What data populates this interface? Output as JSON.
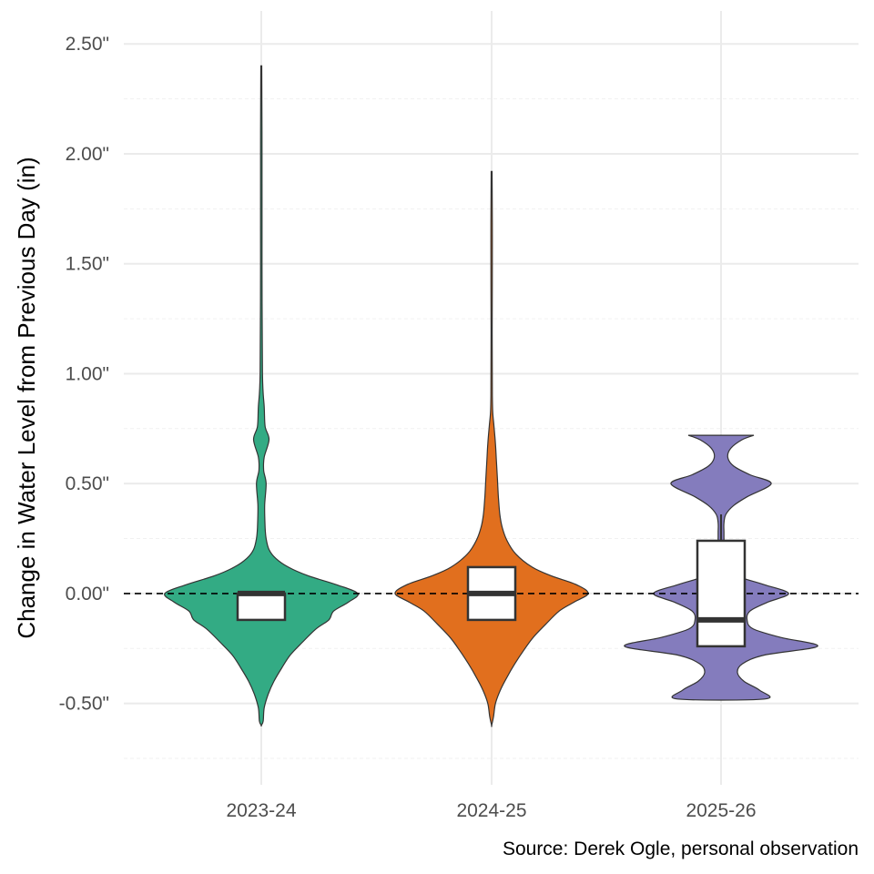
{
  "chart_data": {
    "type": "violin",
    "title": "",
    "xlabel": "",
    "ylabel": "Change in Water Level from Previous Day (in)",
    "caption": "Source: Derek Ogle, personal observation",
    "categories": [
      "2023-24",
      "2024-25",
      "2025-26"
    ],
    "colors": [
      "#2ca880",
      "#e06a17",
      "#8078bb"
    ],
    "ylim": [
      -0.87,
      2.65
    ],
    "yticks": [
      -0.5,
      0.0,
      0.5,
      1.0,
      1.5,
      2.0,
      2.5
    ],
    "ytick_labels": [
      "-0.50\"",
      "0.00\"",
      "0.50\"",
      "1.00\"",
      "1.50\"",
      "2.00\"",
      "2.50\""
    ],
    "reference_line": 0.0,
    "grid": true,
    "legend": "none",
    "boxes": [
      {
        "q1": -0.12,
        "median": 0.0,
        "q3": 0.0,
        "whisker_low": -0.12,
        "whisker_high": 0.0
      },
      {
        "q1": -0.12,
        "median": 0.0,
        "q3": 0.12,
        "whisker_low": -0.12,
        "whisker_high": 0.12
      },
      {
        "q1": -0.24,
        "median": -0.12,
        "q3": 0.24,
        "whisker_low": -0.24,
        "whisker_high": 0.36
      }
    ],
    "violins": [
      {
        "profile": [
          [
            -0.6,
            0.0
          ],
          [
            -0.58,
            0.02
          ],
          [
            -0.52,
            0.03
          ],
          [
            -0.46,
            0.07
          ],
          [
            -0.4,
            0.13
          ],
          [
            -0.34,
            0.21
          ],
          [
            -0.28,
            0.3
          ],
          [
            -0.22,
            0.43
          ],
          [
            -0.16,
            0.57
          ],
          [
            -0.12,
            0.7
          ],
          [
            -0.08,
            0.75
          ],
          [
            -0.04,
            0.9
          ],
          [
            0.0,
            1.0
          ],
          [
            0.04,
            0.78
          ],
          [
            0.08,
            0.49
          ],
          [
            0.12,
            0.28
          ],
          [
            0.16,
            0.15
          ],
          [
            0.2,
            0.08
          ],
          [
            0.25,
            0.05
          ],
          [
            0.3,
            0.04
          ],
          [
            0.4,
            0.035
          ],
          [
            0.5,
            0.05
          ],
          [
            0.56,
            0.025
          ],
          [
            0.62,
            0.03
          ],
          [
            0.7,
            0.08
          ],
          [
            0.76,
            0.04
          ],
          [
            0.85,
            0.03
          ],
          [
            1.0,
            0.012
          ],
          [
            1.5,
            0.008
          ],
          [
            2.0,
            0.008
          ],
          [
            2.4,
            0.005
          ]
        ]
      },
      {
        "profile": [
          [
            -0.6,
            0.0
          ],
          [
            -0.56,
            0.02
          ],
          [
            -0.5,
            0.04
          ],
          [
            -0.44,
            0.09
          ],
          [
            -0.38,
            0.16
          ],
          [
            -0.32,
            0.24
          ],
          [
            -0.26,
            0.33
          ],
          [
            -0.2,
            0.43
          ],
          [
            -0.14,
            0.56
          ],
          [
            -0.08,
            0.7
          ],
          [
            -0.04,
            0.85
          ],
          [
            0.0,
            1.0
          ],
          [
            0.04,
            0.88
          ],
          [
            0.08,
            0.62
          ],
          [
            0.12,
            0.42
          ],
          [
            0.18,
            0.25
          ],
          [
            0.24,
            0.16
          ],
          [
            0.3,
            0.11
          ],
          [
            0.36,
            0.085
          ],
          [
            0.44,
            0.07
          ],
          [
            0.52,
            0.06
          ],
          [
            0.6,
            0.05
          ],
          [
            0.68,
            0.04
          ],
          [
            0.76,
            0.025
          ],
          [
            0.82,
            0.012
          ],
          [
            0.9,
            0.008
          ],
          [
            1.2,
            0.006
          ],
          [
            1.6,
            0.008
          ],
          [
            1.92,
            0.005
          ]
        ]
      },
      {
        "profile": [
          [
            -0.48,
            0.45
          ],
          [
            -0.44,
            0.4
          ],
          [
            -0.4,
            0.24
          ],
          [
            -0.36,
            0.17
          ],
          [
            -0.32,
            0.22
          ],
          [
            -0.28,
            0.45
          ],
          [
            -0.24,
            1.0
          ],
          [
            -0.2,
            0.62
          ],
          [
            -0.16,
            0.33
          ],
          [
            -0.12,
            0.27
          ],
          [
            -0.08,
            0.3
          ],
          [
            -0.04,
            0.48
          ],
          [
            0.0,
            0.7
          ],
          [
            0.04,
            0.45
          ],
          [
            0.08,
            0.16
          ],
          [
            0.12,
            0.07
          ],
          [
            0.16,
            0.04
          ],
          [
            0.2,
            0.03
          ],
          [
            0.24,
            0.03
          ],
          [
            0.28,
            0.03
          ],
          [
            0.32,
            0.03
          ],
          [
            0.36,
            0.05
          ],
          [
            0.4,
            0.13
          ],
          [
            0.44,
            0.27
          ],
          [
            0.5,
            0.52
          ],
          [
            0.54,
            0.3
          ],
          [
            0.58,
            0.13
          ],
          [
            0.62,
            0.07
          ],
          [
            0.66,
            0.1
          ],
          [
            0.7,
            0.22
          ],
          [
            0.72,
            0.34
          ]
        ]
      }
    ]
  }
}
